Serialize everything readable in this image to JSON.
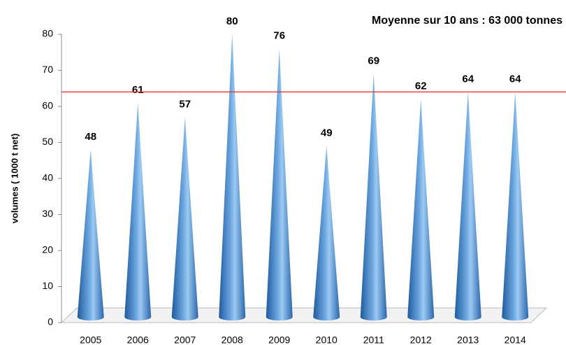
{
  "chart_data": {
    "type": "bar",
    "title": "Moyenne sur 10 ans : 63 000 tonnes",
    "y_label": "volumes ( 1000 t net)",
    "categories": [
      "2005",
      "2006",
      "2007",
      "2008",
      "2009",
      "2010",
      "2011",
      "2012",
      "2013",
      "2014"
    ],
    "values": [
      48,
      61,
      57,
      80,
      76,
      49,
      69,
      62,
      64,
      64
    ],
    "color": "#3a7cc4",
    "reference_line": 64,
    "reference_color": "#e8252a",
    "title_color": "#1a9a1a",
    "ylim": [
      0,
      80
    ],
    "yticks": [
      0,
      10,
      20,
      30,
      40,
      50,
      60,
      70,
      80
    ]
  }
}
